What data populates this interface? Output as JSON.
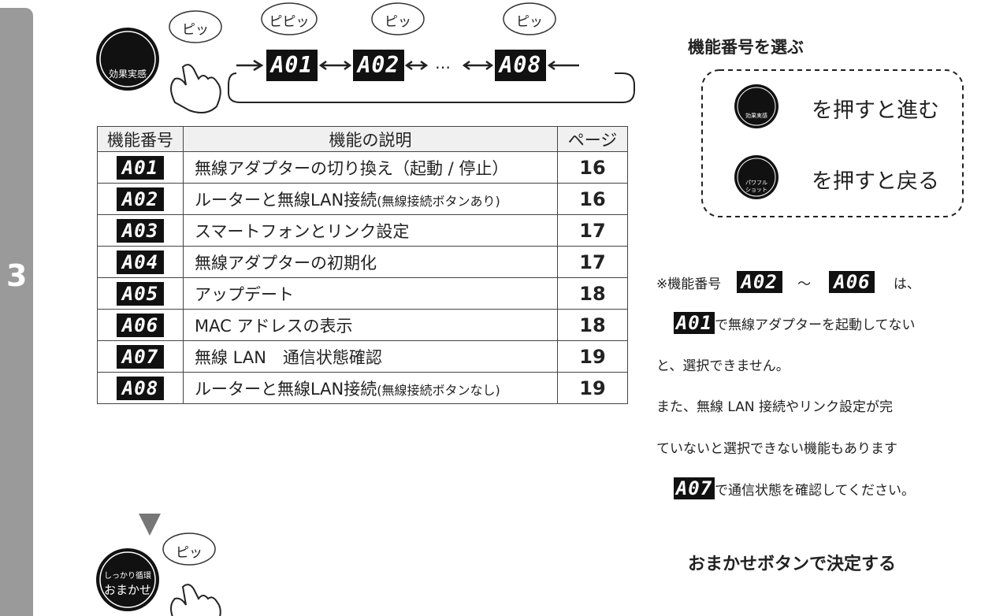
{
  "side_tab": "3",
  "sequence": {
    "button": "効果実感",
    "button_beep": "ピッ",
    "ellipsis": "…",
    "steps": [
      {
        "beep": "ピピッ",
        "code": "A01"
      },
      {
        "beep": "ピッ",
        "code": "A02"
      },
      {
        "beep": "ピッ",
        "code": "A08"
      }
    ]
  },
  "table": {
    "headers": [
      "機能番号",
      "機能の説明",
      "ページ"
    ],
    "rows": [
      {
        "code": "A01",
        "description": "無線アダプターの切り換え（起動 / 停止）",
        "page": 16
      },
      {
        "code": "A02",
        "description": "ルーターと無線LAN接続",
        "note": "(無線接続ボタンあり)",
        "page": 16
      },
      {
        "code": "A03",
        "description": "スマートフォンとリンク設定",
        "page": 17
      },
      {
        "code": "A04",
        "description": "無線アダプターの初期化",
        "page": 17
      },
      {
        "code": "A05",
        "description": "アップデート",
        "page": 18
      },
      {
        "code": "A06",
        "description": "MAC アドレスの表示",
        "page": 18
      },
      {
        "code": "A07",
        "description": "無線 LAN　通信状態確認",
        "page": 19
      },
      {
        "code": "A08",
        "description": "ルーターと無線LAN接続",
        "note": "(無線接続ボタンなし)",
        "page": 19
      }
    ]
  },
  "confirm": {
    "beep": "ピッ",
    "button_top": "しっかり循環",
    "button_main": "おまかせ"
  },
  "select": {
    "title": "機能番号を選ぶ",
    "forward_button": "効果実感",
    "forward": "を押すと進む",
    "back_button": [
      "パワフル",
      "ショット"
    ],
    "back": "を押すと戻る"
  },
  "note": {
    "lead": "※機能番号",
    "from_code": "A02",
    "tilde": "～",
    "to_code": "A06",
    "lead_end": "は、",
    "start_code": "A01",
    "line1": "で無線アダプターを起動してない",
    "line2": "と、選択できません。",
    "line3": "また、無線 LAN 接続やリンク設定が完",
    "line4": "ていないと選択できない機能もあります",
    "check_code": "A07",
    "line5": "で通信状態を確認してください。"
  },
  "decide": "おまかせボタンで決定する"
}
